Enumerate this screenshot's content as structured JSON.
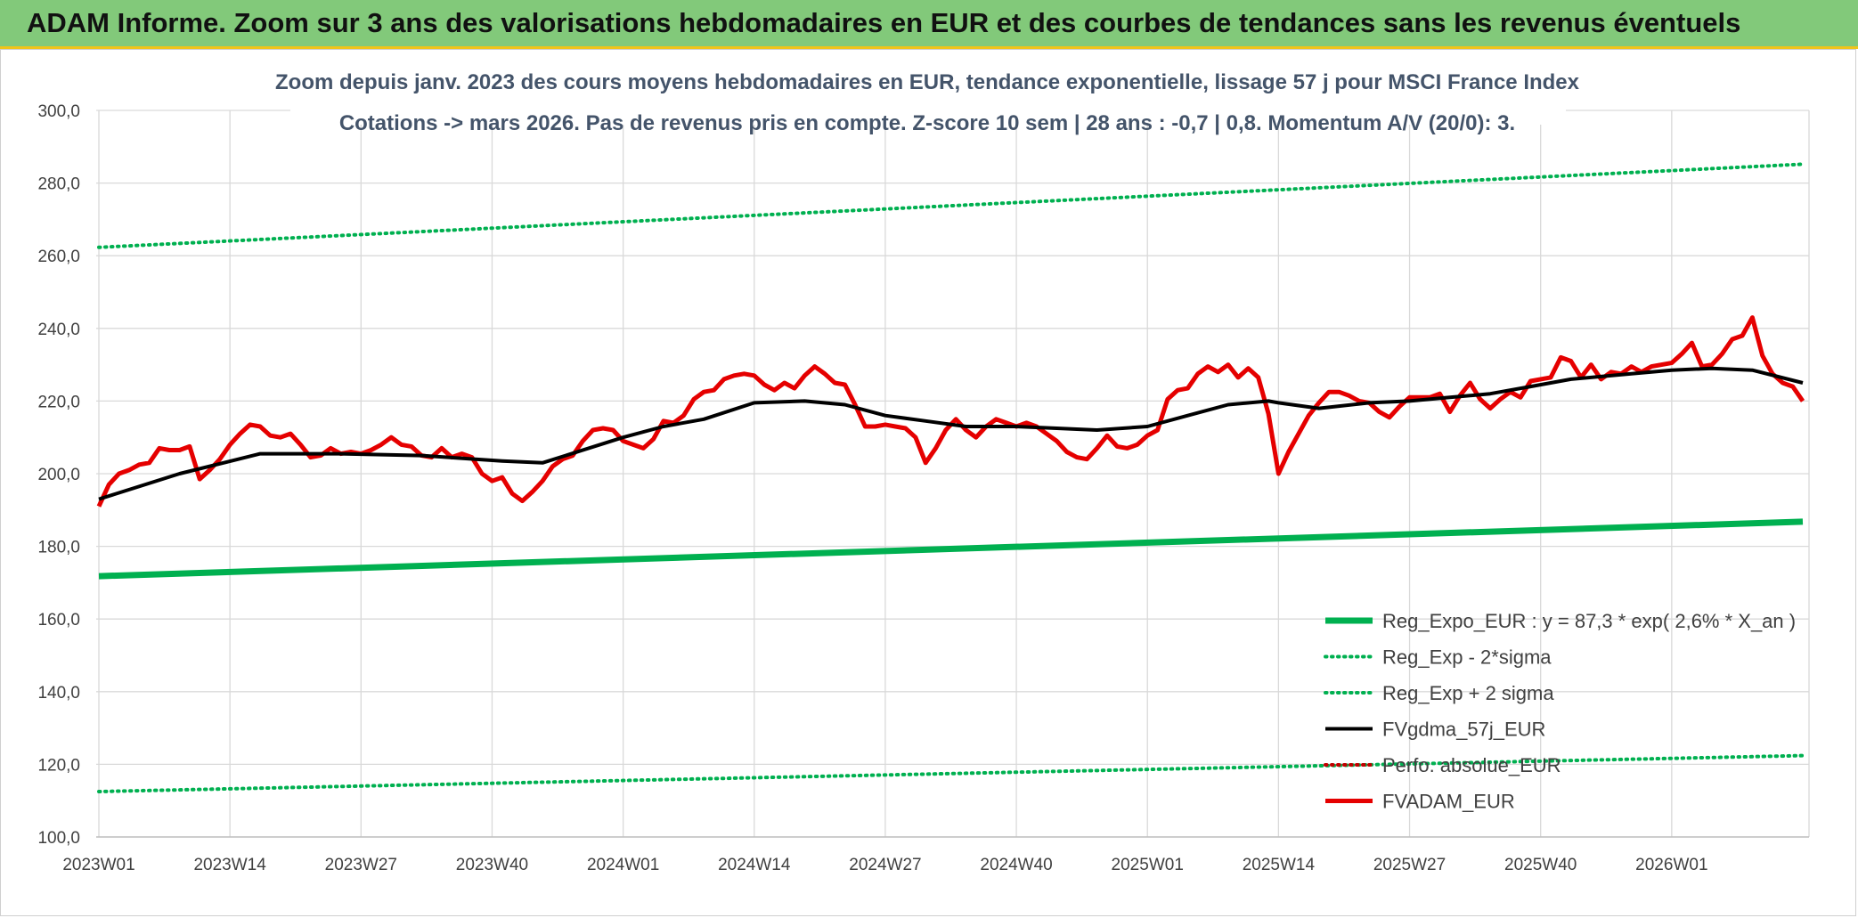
{
  "banner": {
    "title": "ADAM Informe. Zoom sur 3 ans des valorisations hebdomadaires en EUR et des courbes de tendances sans les revenus éventuels"
  },
  "chart_data": {
    "type": "line",
    "title": "Zoom depuis janv. 2023 des cours moyens hebdomadaires en EUR, tendance exponentielle, lissage 57 j pour MSCI France Index",
    "subtitle": "Cotations -> mars 2026. Pas de revenus pris en compte. Z-score 10 sem | 28 ans : -0,7 | 0,8. Momentum A/V (20/0): 3.",
    "xlabel": "",
    "ylabel": "",
    "ylim": [
      100,
      300
    ],
    "yticks": [
      "100,0",
      "120,0",
      "140,0",
      "160,0",
      "180,0",
      "200,0",
      "220,0",
      "240,0",
      "260,0",
      "280,0",
      "300,0"
    ],
    "x_tick_labels": [
      "2023W01",
      "2023W14",
      "2023W27",
      "2023W40",
      "2024W01",
      "2024W14",
      "2024W27",
      "2024W40",
      "2025W01",
      "2025W14",
      "2025W27",
      "2025W40",
      "2026W01"
    ],
    "x_tick_index": [
      0,
      13,
      26,
      39,
      52,
      65,
      78,
      91,
      104,
      117,
      130,
      143,
      156
    ],
    "n_weeks": 170,
    "grid": true,
    "legend_position": "bottom-right",
    "series": [
      {
        "name": "Reg_Expo_EUR : y = 87,3 * exp( 2,6% *  X_an )",
        "color": "#00b050",
        "style": "solid-thick",
        "x": [
          0,
          169
        ],
        "values": [
          171.8,
          186.8
        ]
      },
      {
        "name": "Reg_Exp - 2*sigma",
        "color": "#00b050",
        "style": "dotted",
        "x": [
          0,
          169
        ],
        "values": [
          112.5,
          122.4
        ]
      },
      {
        "name": "Reg_Exp + 2 sigma",
        "color": "#00b050",
        "style": "dotted",
        "x": [
          0,
          169
        ],
        "values": [
          262.3,
          285.2
        ]
      },
      {
        "name": "FVgdma_57j_EUR",
        "color": "#000000",
        "style": "solid",
        "x": [
          0,
          8,
          16,
          24,
          32,
          40,
          44,
          52,
          56,
          60,
          65,
          70,
          74,
          78,
          82,
          86,
          91,
          95,
          99,
          104,
          108,
          112,
          116,
          117,
          121,
          126,
          130,
          134,
          138,
          142,
          146,
          152,
          156,
          160,
          164,
          169
        ],
        "values": [
          193,
          200,
          205.5,
          205.5,
          205,
          203.5,
          203,
          210,
          213,
          215,
          219.5,
          220,
          219,
          216,
          214.5,
          213,
          213,
          212.5,
          212,
          213,
          216,
          219,
          220,
          219.5,
          218,
          219.5,
          220,
          221,
          222,
          224,
          226,
          227.5,
          228.5,
          229,
          228.5,
          225
        ]
      },
      {
        "name": "Perfo. absolue_EUR",
        "color": "#c00000",
        "style": "dotted",
        "x": [],
        "values": []
      },
      {
        "name": "FVADAM_EUR",
        "color": "#e50000",
        "style": "solid-thick",
        "x": [
          0,
          1,
          2,
          3,
          4,
          5,
          6,
          7,
          8,
          9,
          10,
          11,
          12,
          13,
          14,
          15,
          16,
          17,
          18,
          19,
          20,
          21,
          22,
          23,
          24,
          25,
          26,
          27,
          28,
          29,
          30,
          31,
          32,
          33,
          34,
          35,
          36,
          37,
          38,
          39,
          40,
          41,
          42,
          43,
          44,
          45,
          46,
          47,
          48,
          49,
          50,
          51,
          52,
          53,
          54,
          55,
          56,
          57,
          58,
          59,
          60,
          61,
          62,
          63,
          64,
          65,
          66,
          67,
          68,
          69,
          70,
          71,
          72,
          73,
          74,
          75,
          76,
          77,
          78,
          79,
          80,
          81,
          82,
          83,
          84,
          85,
          86,
          87,
          88,
          89,
          90,
          91,
          92,
          93,
          94,
          95,
          96,
          97,
          98,
          99,
          100,
          101,
          102,
          103,
          104,
          105,
          106,
          107,
          108,
          109,
          110,
          111,
          112,
          113,
          114,
          115,
          116,
          117,
          118,
          119,
          120,
          121,
          122,
          123,
          124,
          125,
          126,
          127,
          128,
          129,
          130,
          131,
          132,
          133,
          134,
          135,
          136,
          137,
          138,
          139,
          140,
          141,
          142,
          143,
          144,
          145,
          146,
          147,
          148,
          149,
          150,
          151,
          152,
          153,
          154,
          155,
          156,
          157,
          158,
          159,
          160,
          161,
          162,
          163,
          164,
          165,
          166,
          167,
          168,
          169
        ],
        "values": [
          191,
          197,
          200,
          201,
          202.5,
          203,
          207,
          206.5,
          206.5,
          207.5,
          198.5,
          201,
          204,
          208,
          211,
          213.5,
          213,
          210.5,
          210,
          211,
          208,
          204.5,
          205,
          207,
          205.5,
          206,
          205.5,
          206.5,
          208,
          210,
          208,
          207.5,
          205,
          204.5,
          207,
          204.5,
          205.5,
          204.5,
          200,
          198,
          199,
          194.5,
          192.5,
          195,
          198,
          202,
          204,
          205,
          209,
          212,
          212.5,
          212,
          209,
          208,
          207,
          209.5,
          214.5,
          214,
          216,
          220.5,
          222.5,
          223,
          226,
          227,
          227.5,
          227,
          224.5,
          223,
          225,
          223.5,
          227,
          229.5,
          227.5,
          225,
          224.5,
          219,
          213,
          213,
          213.5,
          213,
          212.5,
          210,
          203,
          207,
          212,
          215,
          212,
          210,
          213,
          215,
          214,
          213,
          214,
          213,
          211,
          209,
          206,
          204.5,
          204,
          207,
          210.5,
          207.5,
          207,
          208,
          210.5,
          212,
          220.5,
          223,
          223.5,
          227.5,
          229.5,
          228,
          230,
          226.5,
          229,
          226.5,
          216.5,
          200,
          206,
          211,
          216,
          219.5,
          222.5,
          222.5,
          221.5,
          220,
          219.5,
          217,
          215.5,
          218.5,
          221,
          221,
          221,
          222,
          217,
          221.5,
          225,
          220.5,
          218,
          220.5,
          222.5,
          221,
          225.5,
          226,
          226.5,
          232,
          231,
          226.5,
          230,
          226,
          228,
          227.5,
          229.5,
          228,
          229.5,
          230,
          230.5,
          233,
          236,
          229.5,
          230,
          233,
          237,
          238,
          243,
          232.5,
          227.5,
          225,
          224,
          220
        ]
      }
    ]
  }
}
